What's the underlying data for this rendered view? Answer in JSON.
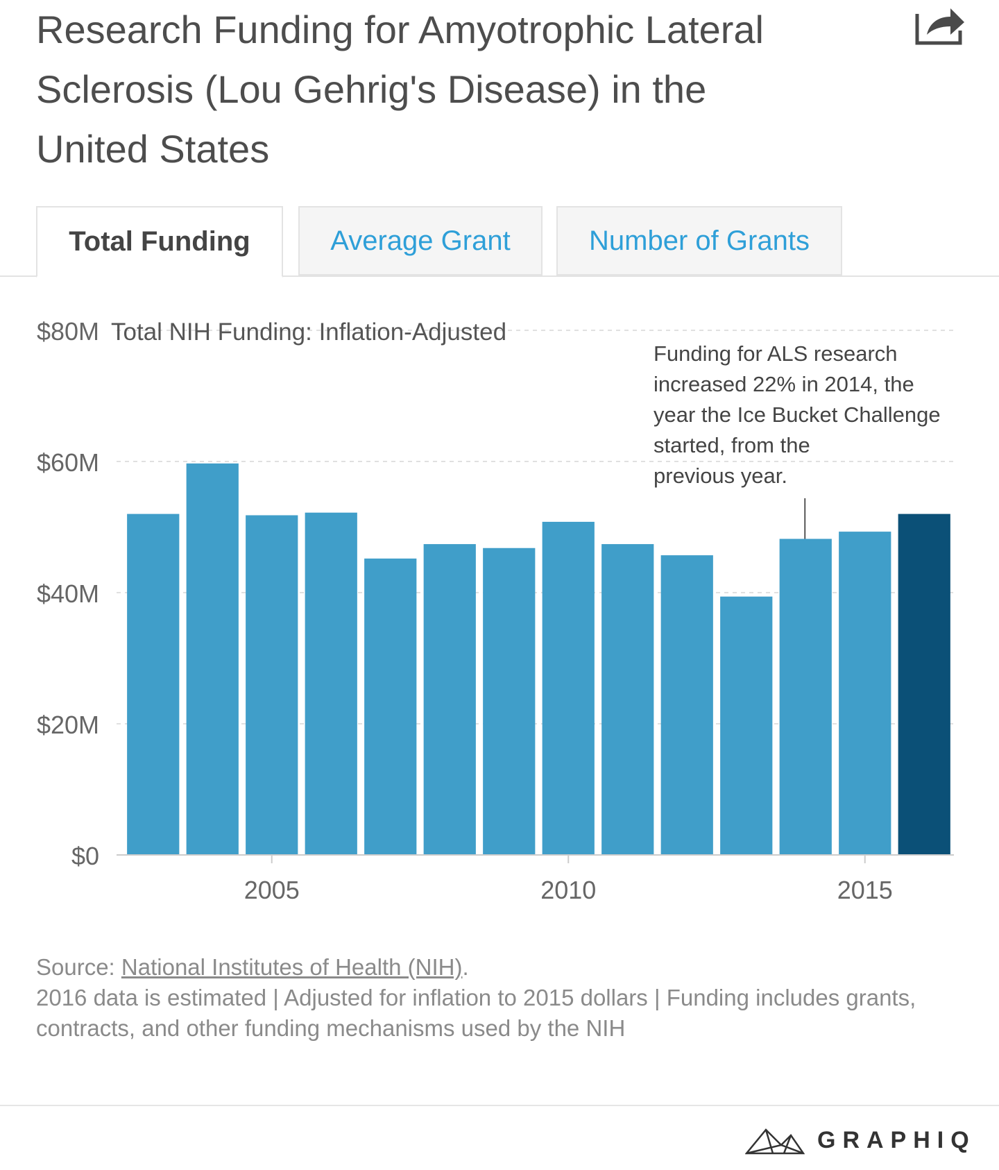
{
  "title": "Research Funding for Amyotrophic Lateral Sclerosis (Lou Gehrig's Disease) in the United States",
  "share_icon": "share-icon",
  "tabs": [
    {
      "label": "Total Funding",
      "active": true
    },
    {
      "label": "Average Grant",
      "active": false
    },
    {
      "label": "Number of Grants",
      "active": false
    }
  ],
  "chart_data": {
    "type": "bar",
    "title": "Total NIH Funding: Inflation-Adjusted",
    "xlabel": "",
    "ylabel": "",
    "ylim": [
      0,
      80
    ],
    "y_ticks": [
      {
        "value": 0,
        "label": "$0"
      },
      {
        "value": 20,
        "label": "$20M"
      },
      {
        "value": 40,
        "label": "$40M"
      },
      {
        "value": 60,
        "label": "$60M"
      },
      {
        "value": 80,
        "label": "$80M"
      }
    ],
    "x_ticks": [
      {
        "value": 2005,
        "label": "2005"
      },
      {
        "value": 2010,
        "label": "2010"
      },
      {
        "value": 2015,
        "label": "2015"
      }
    ],
    "categories": [
      2003,
      2004,
      2005,
      2006,
      2007,
      2008,
      2009,
      2010,
      2011,
      2012,
      2013,
      2014,
      2015,
      2016
    ],
    "values": [
      52,
      59.7,
      51.8,
      52.2,
      45.2,
      47.4,
      46.8,
      50.8,
      47.4,
      45.7,
      39.4,
      48.2,
      49.3,
      52
    ],
    "estimated": [
      false,
      false,
      false,
      false,
      false,
      false,
      false,
      false,
      false,
      false,
      false,
      false,
      false,
      true
    ],
    "colors": {
      "bar": "#409ec9",
      "highlight": "#0b5077",
      "grid": "#e0e0e0",
      "axis": "#cccccc"
    },
    "annotation": {
      "year": 2014,
      "lines": [
        "Funding for ALS research",
        "increased 22% in 2014, the",
        "year the Ice Bucket Challenge",
        "started, from the",
        "previous year."
      ]
    }
  },
  "footer": {
    "source_prefix": "Source: ",
    "source_link": "National Institutes of Health (NIH)",
    "source_suffix": ".",
    "note": "2016 data is estimated | Adjusted for inflation to 2015 dollars | Funding includes grants, contracts, and other funding mechanisms used by the NIH"
  },
  "logo": {
    "text": "GRAPHIQ",
    "icon": "graphiq-logo-icon"
  }
}
